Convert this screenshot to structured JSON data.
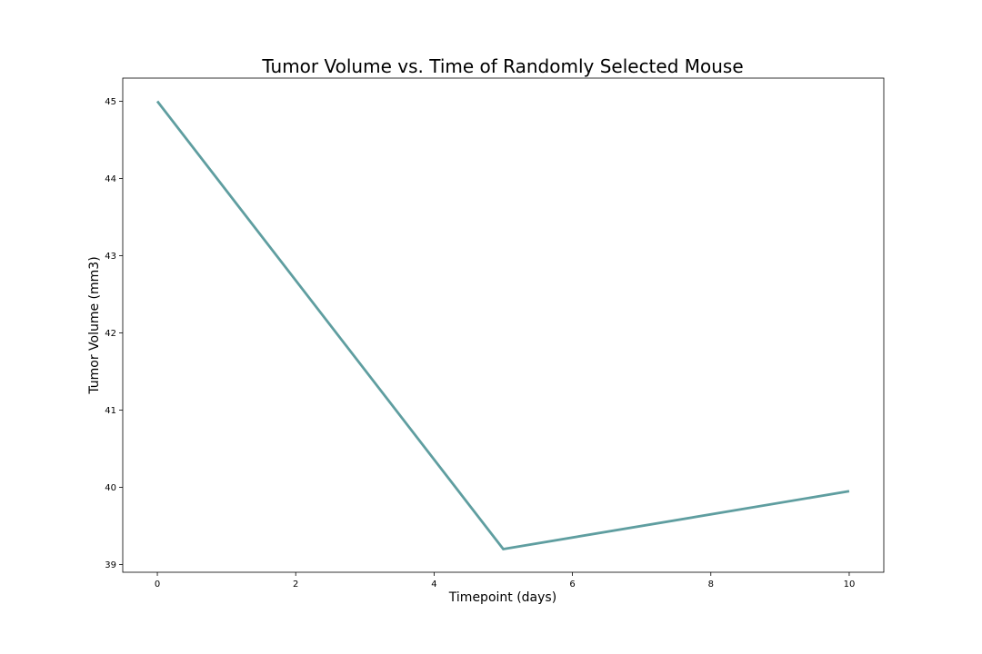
{
  "chart_data": {
    "type": "line",
    "title": "Tumor Volume vs. Time of Randomly Selected Mouse",
    "xlabel": "Timepoint (days)",
    "ylabel": "Tumor Volume (mm3)",
    "x": [
      0,
      5,
      10
    ],
    "series": [
      {
        "values": [
          45.0,
          39.2,
          39.95
        ],
        "color": "#5f9ea0"
      }
    ],
    "xlim": [
      -0.5,
      10.5
    ],
    "ylim": [
      38.9,
      45.3
    ],
    "xticks": [
      0,
      2,
      4,
      6,
      8,
      10
    ],
    "yticks": [
      39,
      40,
      41,
      42,
      43,
      44,
      45
    ],
    "grid": false,
    "legend": "none"
  }
}
